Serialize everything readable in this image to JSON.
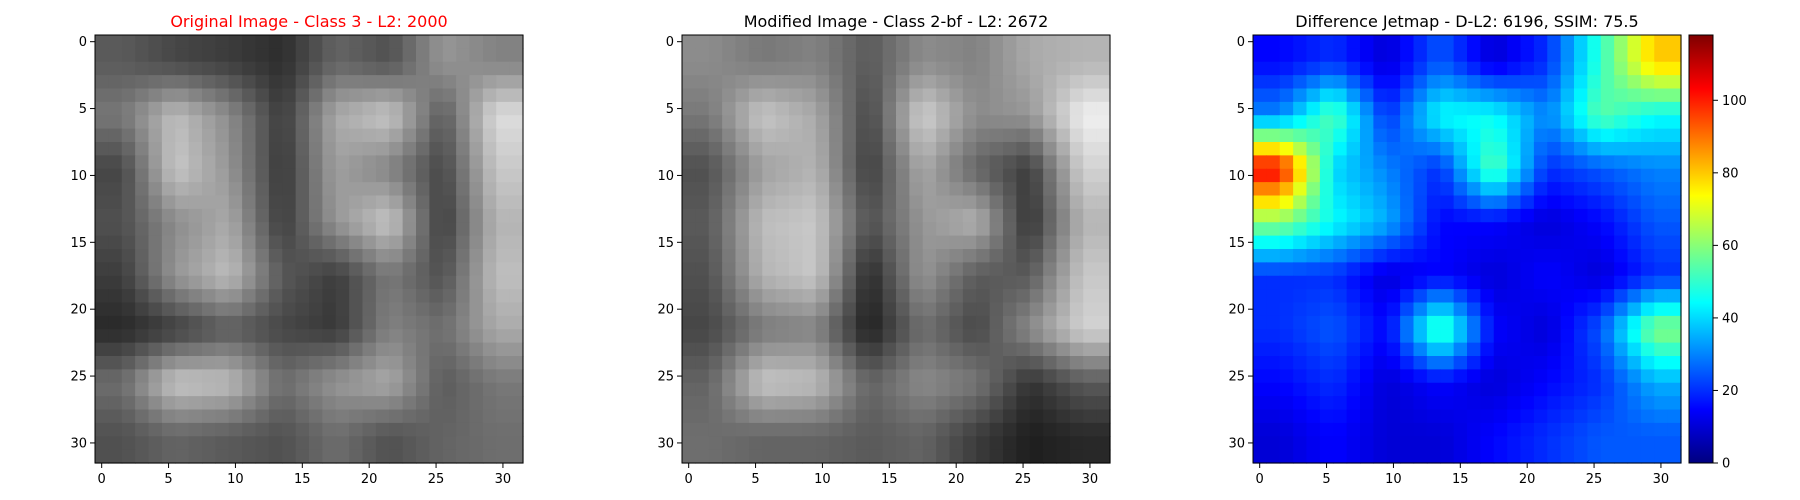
{
  "figure": {
    "panels": [
      {
        "key": "original",
        "title": "Original Image - Class 3 - L2: 2000",
        "title_color": "#ff0000"
      },
      {
        "key": "modified",
        "title": "Modified Image - Class 2-bf - L2: 2672",
        "title_color": "#000000"
      },
      {
        "key": "diff",
        "title": "Difference Jetmap - D-L2: 6196, SSIM: 75.5",
        "title_color": "#000000"
      }
    ],
    "axis_ticks": [
      "0",
      "5",
      "10",
      "15",
      "20",
      "25",
      "30"
    ],
    "colorbar_ticks": [
      "0",
      "20",
      "40",
      "60",
      "80",
      "100"
    ]
  },
  "chart_data": [
    {
      "type": "heatmap",
      "title": "Original Image - Class 3 - L2: 2000",
      "colormap": "gray",
      "grid": false,
      "xlim": [
        -0.5,
        31.5
      ],
      "ylim": [
        31.5,
        -0.5
      ],
      "xticks": [
        0,
        5,
        10,
        15,
        20,
        25,
        30
      ],
      "yticks": [
        0,
        5,
        10,
        15,
        20,
        25,
        30
      ],
      "rows": 32,
      "cols": 32,
      "value_range": [
        0,
        255
      ],
      "visual_content": "blurred grayscale street-number crop showing digits 2, 9, 7",
      "values_coarse_8x8": [
        [
          90,
          70,
          60,
          45,
          100,
          80,
          150,
          130
        ],
        [
          120,
          190,
          140,
          60,
          170,
          200,
          90,
          220
        ],
        [
          70,
          200,
          150,
          55,
          160,
          130,
          70,
          200
        ],
        [
          80,
          140,
          170,
          60,
          150,
          200,
          60,
          180
        ],
        [
          60,
          150,
          190,
          90,
          60,
          120,
          80,
          190
        ],
        [
          40,
          60,
          90,
          70,
          55,
          130,
          110,
          170
        ],
        [
          110,
          200,
          190,
          110,
          150,
          170,
          90,
          120
        ],
        [
          80,
          100,
          90,
          80,
          110,
          80,
          100,
          110
        ]
      ]
    },
    {
      "type": "heatmap",
      "title": "Modified Image - Class 2-bf - L2: 2672",
      "colormap": "gray",
      "grid": false,
      "xlim": [
        -0.5,
        31.5
      ],
      "ylim": [
        31.5,
        -0.5
      ],
      "xticks": [
        0,
        5,
        10,
        15,
        20,
        25,
        30
      ],
      "yticks": [
        0,
        5,
        10,
        15,
        20,
        25,
        30
      ],
      "rows": 32,
      "cols": 32,
      "value_range": [
        0,
        255
      ],
      "visual_content": "blurred grayscale street-number crop showing digits 0, 9, 7",
      "values_coarse_8x8": [
        [
          140,
          120,
          130,
          90,
          140,
          130,
          170,
          180
        ],
        [
          120,
          200,
          170,
          70,
          210,
          140,
          150,
          240
        ],
        [
          80,
          160,
          180,
          60,
          170,
          100,
          60,
          210
        ],
        [
          90,
          190,
          200,
          80,
          150,
          180,
          50,
          180
        ],
        [
          80,
          180,
          200,
          40,
          150,
          90,
          90,
          200
        ],
        [
          70,
          120,
          130,
          30,
          110,
          70,
          140,
          210
        ],
        [
          100,
          200,
          190,
          100,
          140,
          120,
          50,
          90
        ],
        [
          110,
          100,
          100,
          90,
          100,
          60,
          30,
          40
        ]
      ]
    },
    {
      "type": "heatmap",
      "title": "Difference Jetmap - D-L2: 6196, SSIM: 75.5",
      "colormap": "jet",
      "grid": false,
      "xlim": [
        -0.5,
        31.5
      ],
      "ylim": [
        31.5,
        -0.5
      ],
      "xticks": [
        0,
        5,
        10,
        15,
        20,
        25,
        30
      ],
      "yticks": [
        0,
        5,
        10,
        15,
        20,
        25,
        30
      ],
      "rows": 32,
      "cols": 32,
      "value_range": [
        0,
        118
      ],
      "colorbar": {
        "ticks": [
          0,
          20,
          40,
          60,
          80,
          100
        ],
        "placement": "right"
      },
      "values_coarse_8x8": [
        [
          15,
          20,
          10,
          25,
          10,
          20,
          50,
          80
        ],
        [
          30,
          55,
          20,
          45,
          45,
          30,
          55,
          45
        ],
        [
          105,
          40,
          30,
          20,
          55,
          20,
          25,
          30
        ],
        [
          60,
          45,
          35,
          15,
          15,
          10,
          15,
          25
        ],
        [
          20,
          20,
          10,
          15,
          10,
          15,
          10,
          20
        ],
        [
          20,
          25,
          15,
          55,
          15,
          10,
          25,
          60
        ],
        [
          15,
          20,
          10,
          15,
          10,
          15,
          20,
          35
        ],
        [
          10,
          15,
          10,
          10,
          15,
          20,
          25,
          25
        ]
      ]
    }
  ]
}
